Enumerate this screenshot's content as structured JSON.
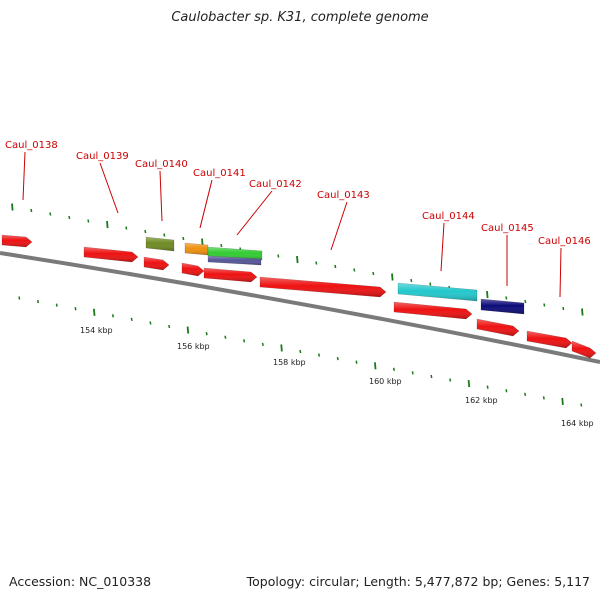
{
  "title": "Caulobacter sp. K31, complete genome",
  "footer": {
    "accession": "Accession: NC_010338",
    "summary": "Topology: circular; Length: 5,477,872 bp; Genes: 5,117"
  },
  "colors": {
    "backbone": "#7a7a7a",
    "tick": "#1a7a1a",
    "label_red": "#cc0000",
    "gene_red": "#ee1111",
    "olive": "#6e8a22",
    "orange": "#f0900e",
    "green": "#33cc33",
    "slate": "#555599",
    "cyan": "#22c8cc",
    "navy": "#0c0c7a"
  },
  "scale_labels": [
    "154 kbp",
    "156 kbp",
    "158 kbp",
    "160 kbp",
    "162 kbp",
    "164 kbp"
  ],
  "gene_labels": [
    "Caul_0138",
    "Caul_0139",
    "Caul_0140",
    "Caul_0141",
    "Caul_0142",
    "Caul_0143",
    "Caul_0144",
    "Caul_0145",
    "Caul_0146"
  ],
  "features": [
    {
      "color": "red",
      "shape": "arrow"
    },
    {
      "color": "red",
      "shape": "arrow"
    },
    {
      "color": "red",
      "shape": "arrow"
    },
    {
      "color": "red",
      "shape": "arrow"
    },
    {
      "color": "red",
      "shape": "arrow"
    },
    {
      "color": "red",
      "shape": "arrow"
    },
    {
      "color": "red",
      "shape": "arrow"
    },
    {
      "color": "red",
      "shape": "arrow"
    },
    {
      "color": "red",
      "shape": "arrow"
    },
    {
      "color": "red",
      "shape": "arrow"
    },
    {
      "color": "olive",
      "shape": "box"
    },
    {
      "color": "orange",
      "shape": "box"
    },
    {
      "color": "green",
      "shape": "box"
    },
    {
      "color": "slate",
      "shape": "box"
    },
    {
      "color": "cyan",
      "shape": "box"
    },
    {
      "color": "navy",
      "shape": "box"
    }
  ]
}
